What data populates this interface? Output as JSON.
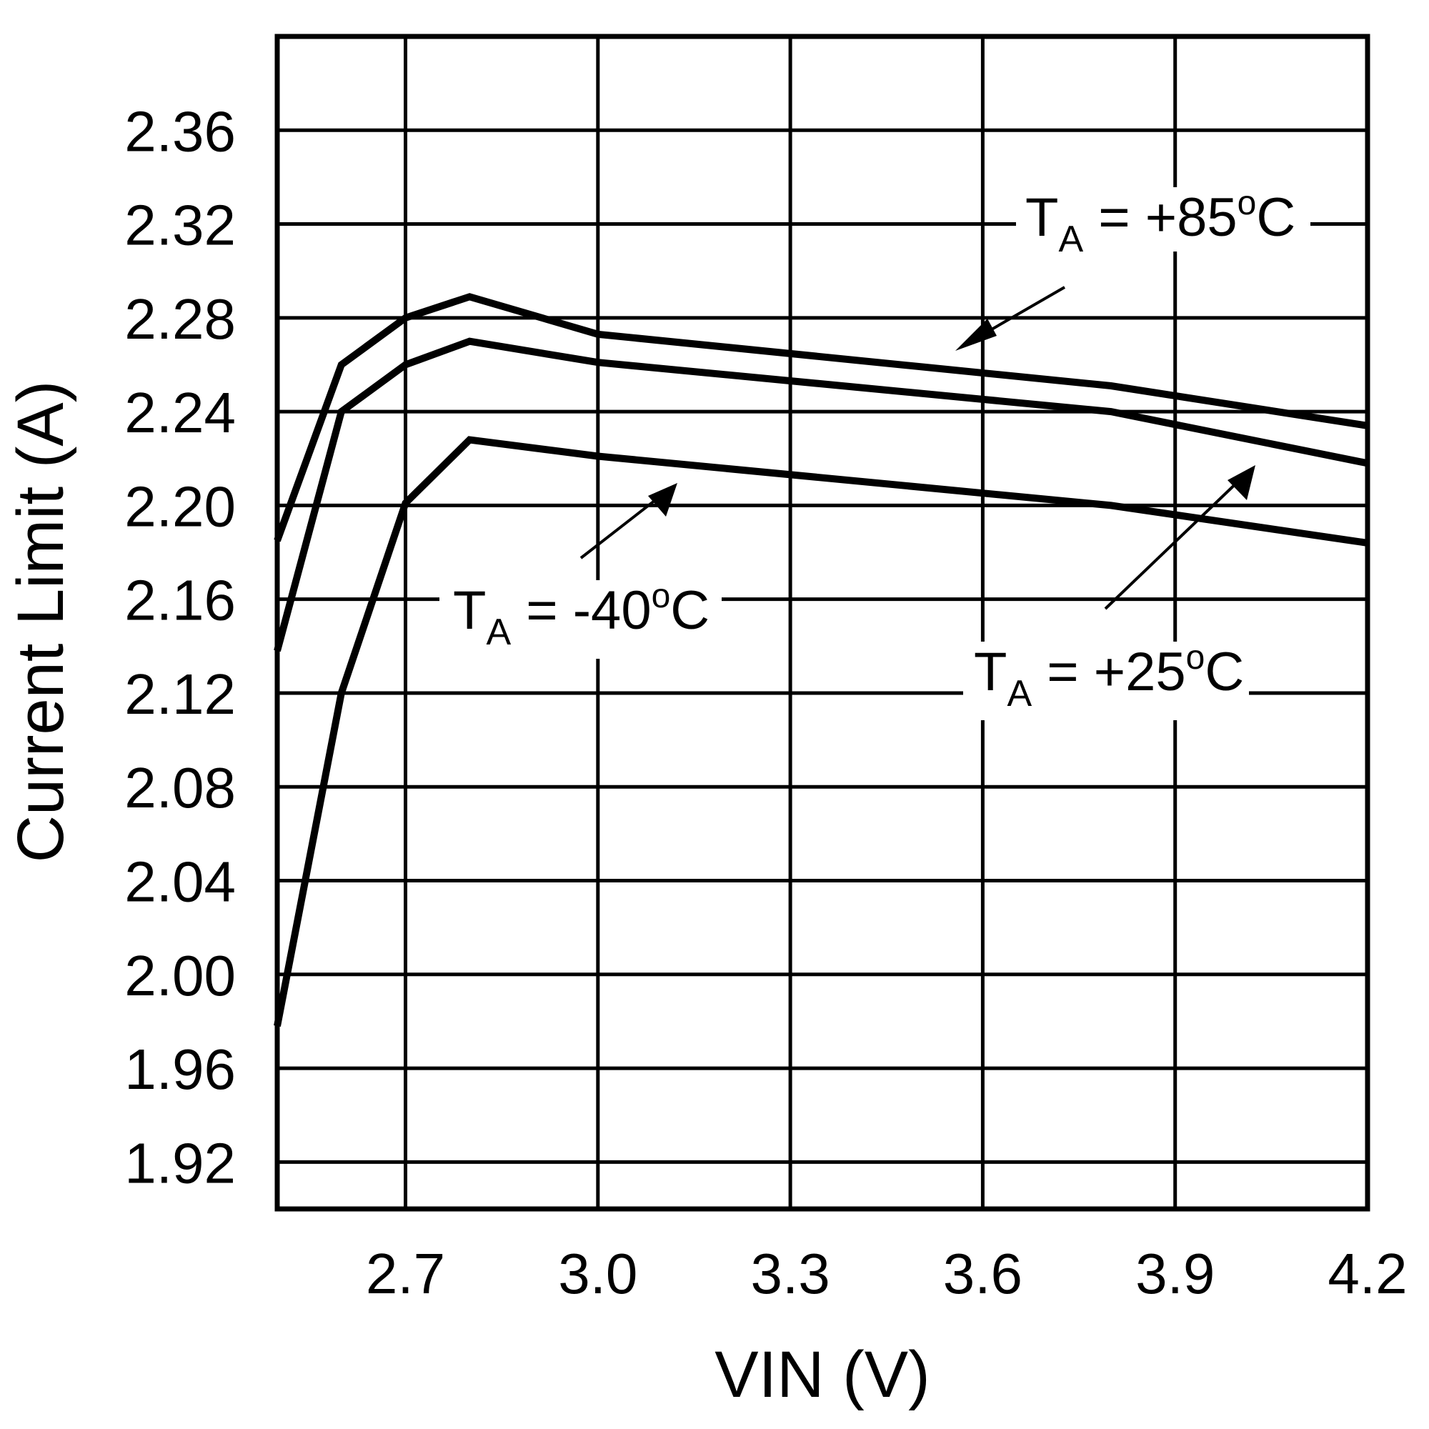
{
  "chart_data": {
    "type": "line",
    "title": "",
    "xlabel": "VIN (V)",
    "ylabel": "Current Limit (A)",
    "xlim": [
      2.5,
      4.2
    ],
    "ylim": [
      1.9,
      2.4
    ],
    "xticks": [
      "2.7",
      "3.0",
      "3.3",
      "3.6",
      "3.9",
      "4.2"
    ],
    "xtick_values": [
      2.7,
      3.0,
      3.3,
      3.6,
      3.9,
      4.2
    ],
    "yticks": [
      "2.36",
      "2.32",
      "2.28",
      "2.24",
      "2.20",
      "2.16",
      "2.12",
      "2.08",
      "2.04",
      "2.00",
      "1.96",
      "1.92"
    ],
    "ytick_values": [
      2.36,
      2.32,
      2.28,
      2.24,
      2.2,
      2.16,
      2.12,
      2.08,
      2.04,
      2.0,
      1.96,
      1.92
    ],
    "grid": true,
    "line_color": "#000000",
    "x": [
      2.5,
      2.6,
      2.7,
      2.8,
      3.0,
      3.8,
      4.2
    ],
    "series": [
      {
        "name": "TA = +85ºC",
        "values": [
          2.185,
          2.26,
          2.28,
          2.289,
          2.273,
          2.251,
          2.234
        ]
      },
      {
        "name": "TA = +25ºC",
        "values": [
          2.138,
          2.24,
          2.26,
          2.27,
          2.261,
          2.24,
          2.218
        ]
      },
      {
        "name": "TA = -40ºC",
        "values": [
          1.978,
          2.12,
          2.201,
          2.228,
          2.221,
          2.2,
          2.184
        ]
      }
    ],
    "annotations": [
      {
        "t": "T",
        "sub": "A",
        "eq": " = +85",
        "deg": "o",
        "unit": "C"
      },
      {
        "t": "T",
        "sub": "A",
        "eq": " = -40",
        "deg": "o",
        "unit": "C"
      },
      {
        "t": "T",
        "sub": "A",
        "eq": " = +25",
        "deg": "o",
        "unit": "C"
      }
    ]
  }
}
